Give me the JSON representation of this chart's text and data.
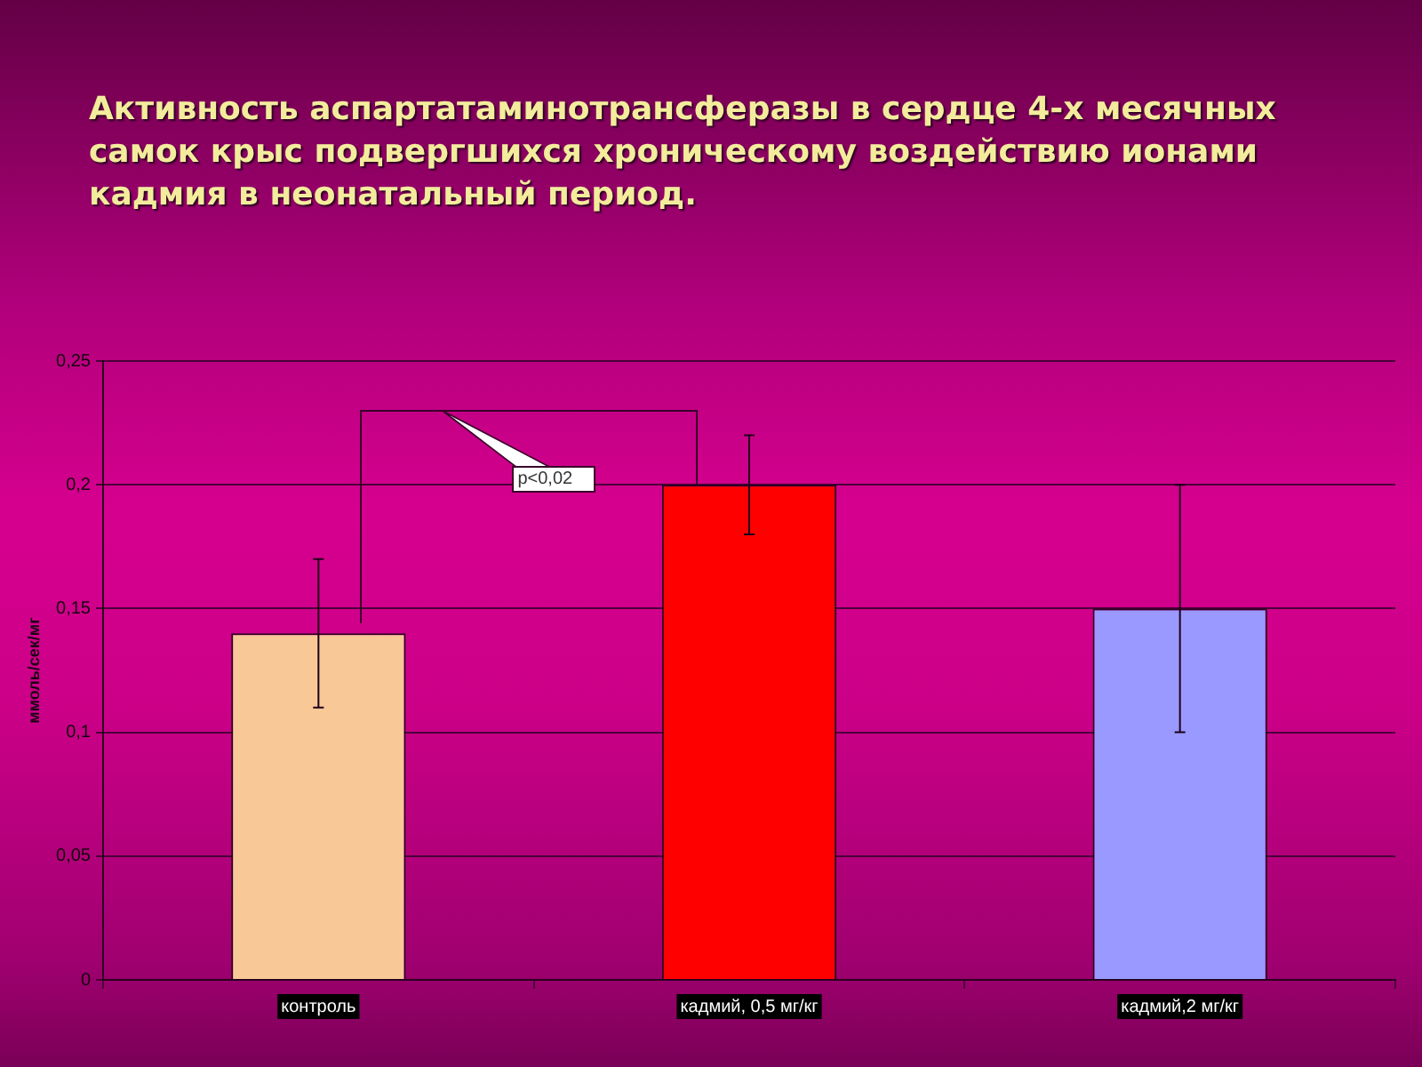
{
  "chart_data": {
    "type": "bar",
    "title": "Активность аспартатаминотрансферазы в сердце 4-х месячных самок крыс подвергшихся хроническому воздействию ионами кадмия в неонатальный период.",
    "ylabel": "ммоль/сек/мг",
    "categories": [
      "контроль",
      "кадмий, 0,5 мг/кг",
      "кадмий,2 мг/кг"
    ],
    "values": [
      0.14,
      0.2,
      0.15
    ],
    "errors": [
      0.03,
      0.02,
      0.05
    ],
    "colors": [
      "#f8c896",
      "#ff0000",
      "#9999ff"
    ],
    "ylim": [
      0,
      0.25
    ],
    "yticks": [
      0,
      {
        "value": 0.05,
        "label": "0,05"
      },
      {
        "value": 0.1,
        "label": "0,1"
      },
      {
        "value": 0.15,
        "label": "0,15"
      },
      {
        "value": 0.2,
        "label": "0,2"
      },
      {
        "value": 0.25,
        "label": "0,25"
      }
    ],
    "grid": "y",
    "annotations": [
      "p<0,02"
    ]
  }
}
